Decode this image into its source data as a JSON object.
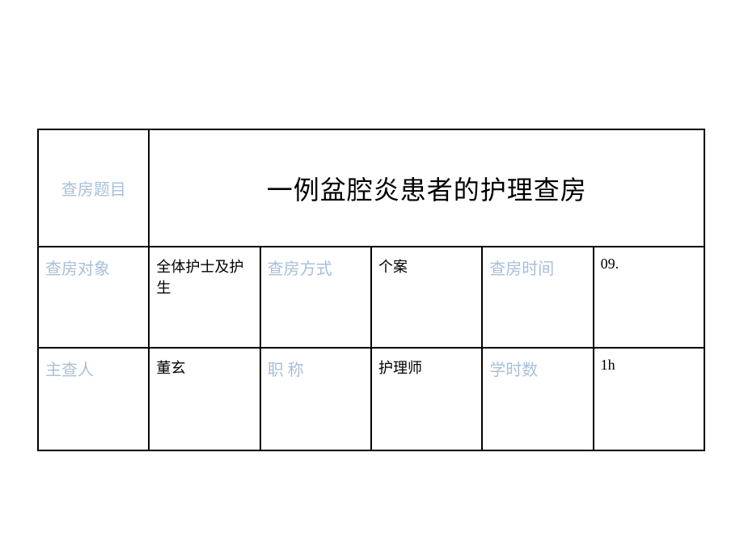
{
  "table": {
    "title_row": {
      "label": "查房题目",
      "value": "一例盆腔炎患者的护理查房"
    },
    "row1": {
      "label1": "查房对象",
      "value1": "全体护士及护生",
      "label2": "查房方式",
      "value2": "个案",
      "label3": "查房时间",
      "value3": "09."
    },
    "row2": {
      "label1": "主查人",
      "value1": "董玄",
      "label2": "职   称",
      "value2": "护理师",
      "label3": "学时数",
      "value3": "1h"
    }
  },
  "styles": {
    "label_color": "#a8c0d8",
    "value_color": "#000000",
    "border_color": "#000000",
    "background_color": "#ffffff",
    "title_fontsize": 32,
    "label_fontsize": 20,
    "value_fontsize": 18
  }
}
